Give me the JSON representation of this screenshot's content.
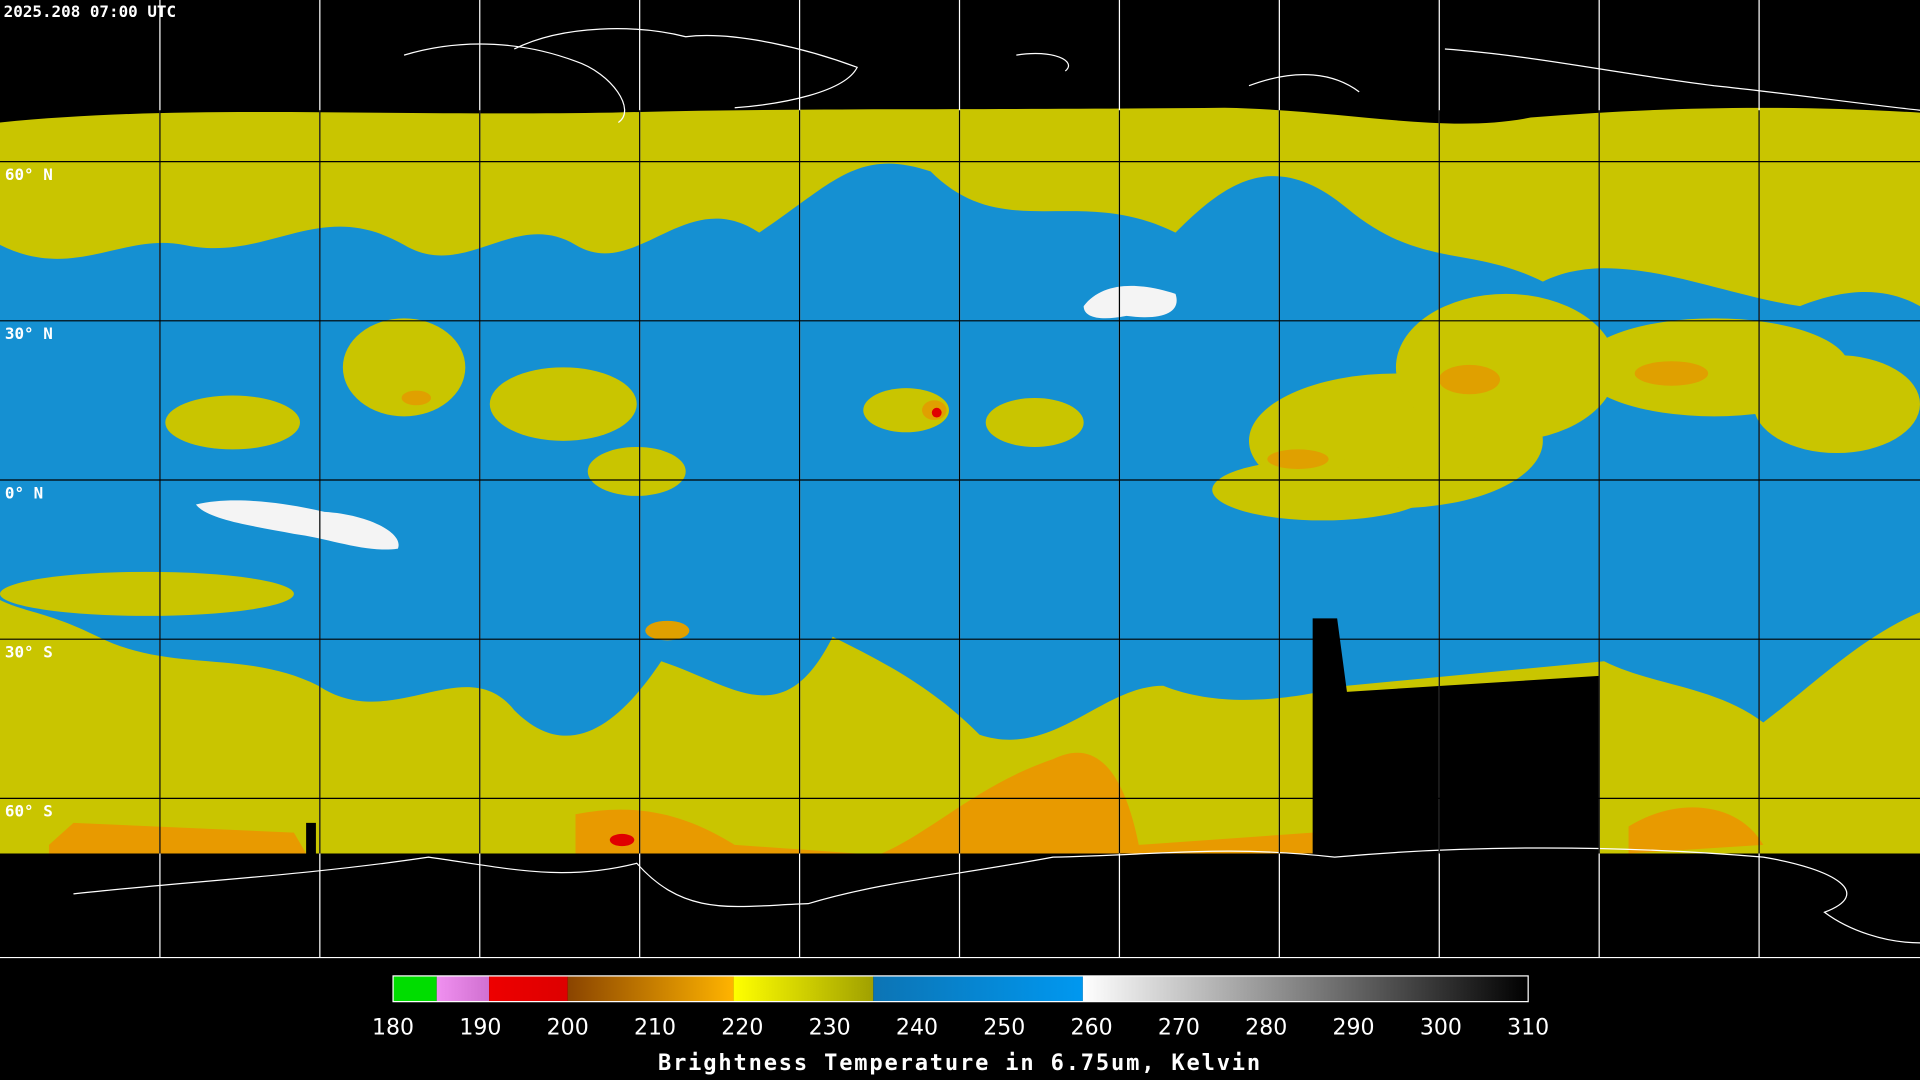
{
  "header": {
    "timestamp": "2025.208 07:00 UTC"
  },
  "map": {
    "latitude_labels": [
      "60° N",
      "30° N",
      "0° N",
      "30° S",
      "60° S"
    ]
  },
  "colorbar": {
    "ticks": [
      180,
      190,
      200,
      210,
      220,
      230,
      240,
      250,
      260,
      270,
      280,
      290,
      300,
      310
    ],
    "stops": [
      {
        "value": 180,
        "color": "#00dd00"
      },
      {
        "value": 185,
        "color": "#00dd00"
      },
      {
        "value": 185,
        "color": "#f090f0"
      },
      {
        "value": 191,
        "color": "#d070d0"
      },
      {
        "value": 191,
        "color": "#ee0000"
      },
      {
        "value": 200,
        "color": "#dd0000"
      },
      {
        "value": 200,
        "color": "#8a4400"
      },
      {
        "value": 219,
        "color": "#ffb400"
      },
      {
        "value": 219,
        "color": "#ffff00"
      },
      {
        "value": 235,
        "color": "#a0a000"
      },
      {
        "value": 235,
        "color": "#0c74b4"
      },
      {
        "value": 259,
        "color": "#0098f0"
      },
      {
        "value": 259,
        "color": "#ffffff"
      },
      {
        "value": 310,
        "color": "#000000"
      }
    ],
    "title": "Brightness Temperature in 6.75um, Kelvin"
  }
}
